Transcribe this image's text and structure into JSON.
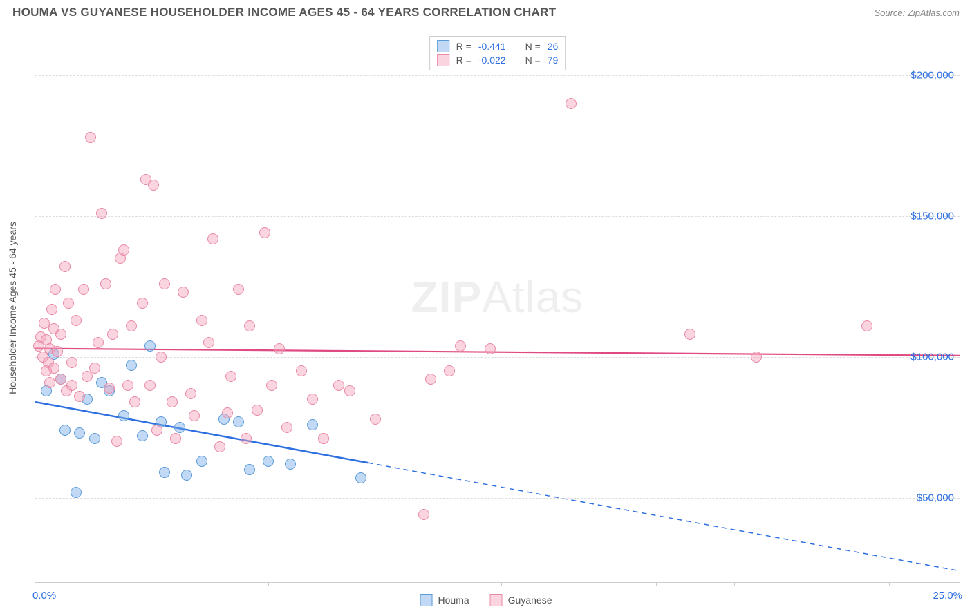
{
  "title": "HOUMA VS GUYANESE HOUSEHOLDER INCOME AGES 45 - 64 YEARS CORRELATION CHART",
  "source": "Source: ZipAtlas.com",
  "watermark_a": "ZIP",
  "watermark_b": "Atlas",
  "chart": {
    "type": "scatter",
    "xlim": [
      0,
      25
    ],
    "ylim": [
      20000,
      215000
    ],
    "x_label_min": "0.0%",
    "x_label_max": "25.0%",
    "yaxis_title": "Householder Income Ages 45 - 64 years",
    "yticks": [
      50000,
      100000,
      150000,
      200000
    ],
    "ytick_labels": [
      "$50,000",
      "$100,000",
      "$150,000",
      "$200,000"
    ],
    "xtick_positions": [
      2.1,
      4.2,
      6.3,
      8.4,
      10.5,
      12.6,
      14.7,
      16.8,
      18.9,
      21.0,
      23.1
    ],
    "grid_color": "#dddddd",
    "axis_color": "#cccccc",
    "background_color": "#ffffff",
    "marker_radius": 8,
    "marker_stroke_width": 1.2,
    "series": [
      {
        "name": "Houma",
        "fill": "rgba(118,170,231,0.45)",
        "stroke": "#5a9bd8",
        "r_label": "R =",
        "r_value": "-0.441",
        "n_label": "N =",
        "n_value": "26",
        "trend": {
          "y_at_xmin": 84000,
          "y_at_xmax": 24000,
          "solid_until_x": 9.0,
          "color": "#2d6fe0",
          "width": 2.5
        },
        "points": [
          [
            0.3,
            88000
          ],
          [
            0.5,
            101000
          ],
          [
            0.7,
            92000
          ],
          [
            0.8,
            74000
          ],
          [
            1.1,
            52000
          ],
          [
            1.2,
            73000
          ],
          [
            1.4,
            85000
          ],
          [
            1.6,
            71000
          ],
          [
            1.8,
            91000
          ],
          [
            2.0,
            88000
          ],
          [
            2.4,
            79000
          ],
          [
            2.6,
            97000
          ],
          [
            2.9,
            72000
          ],
          [
            3.1,
            104000
          ],
          [
            3.4,
            77000
          ],
          [
            3.5,
            59000
          ],
          [
            3.9,
            75000
          ],
          [
            4.1,
            58000
          ],
          [
            4.5,
            63000
          ],
          [
            5.1,
            78000
          ],
          [
            5.5,
            77000
          ],
          [
            5.8,
            60000
          ],
          [
            6.3,
            63000
          ],
          [
            6.9,
            62000
          ],
          [
            7.5,
            76000
          ],
          [
            8.8,
            57000
          ]
        ]
      },
      {
        "name": "Guyanese",
        "fill": "rgba(244,160,185,0.45)",
        "stroke": "#e889a6",
        "r_label": "R =",
        "r_value": "-0.022",
        "n_label": "N =",
        "n_value": "79",
        "trend": {
          "y_at_xmin": 103000,
          "y_at_xmax": 100500,
          "solid_until_x": 25.0,
          "color": "#e04a82",
          "width": 2.2
        },
        "points": [
          [
            0.1,
            104000
          ],
          [
            0.15,
            107000
          ],
          [
            0.2,
            100000
          ],
          [
            0.25,
            112000
          ],
          [
            0.3,
            95000
          ],
          [
            0.3,
            106000
          ],
          [
            0.35,
            98000
          ],
          [
            0.4,
            103000
          ],
          [
            0.4,
            91000
          ],
          [
            0.45,
            117000
          ],
          [
            0.5,
            110000
          ],
          [
            0.5,
            96000
          ],
          [
            0.55,
            124000
          ],
          [
            0.6,
            102000
          ],
          [
            0.7,
            108000
          ],
          [
            0.7,
            92000
          ],
          [
            0.8,
            132000
          ],
          [
            0.85,
            88000
          ],
          [
            0.9,
            119000
          ],
          [
            1.0,
            98000
          ],
          [
            1.0,
            90000
          ],
          [
            1.1,
            113000
          ],
          [
            1.2,
            86000
          ],
          [
            1.3,
            124000
          ],
          [
            1.4,
            93000
          ],
          [
            1.5,
            178000
          ],
          [
            1.6,
            96000
          ],
          [
            1.7,
            105000
          ],
          [
            1.8,
            151000
          ],
          [
            1.9,
            126000
          ],
          [
            2.0,
            89000
          ],
          [
            2.1,
            108000
          ],
          [
            2.2,
            70000
          ],
          [
            2.3,
            135000
          ],
          [
            2.4,
            138000
          ],
          [
            2.5,
            90000
          ],
          [
            2.6,
            111000
          ],
          [
            2.7,
            84000
          ],
          [
            2.9,
            119000
          ],
          [
            3.0,
            163000
          ],
          [
            3.1,
            90000
          ],
          [
            3.2,
            161000
          ],
          [
            3.3,
            74000
          ],
          [
            3.4,
            100000
          ],
          [
            3.5,
            126000
          ],
          [
            3.7,
            84000
          ],
          [
            3.8,
            71000
          ],
          [
            4.0,
            123000
          ],
          [
            4.2,
            87000
          ],
          [
            4.3,
            79000
          ],
          [
            4.5,
            113000
          ],
          [
            4.7,
            105000
          ],
          [
            4.8,
            142000
          ],
          [
            5.0,
            68000
          ],
          [
            5.2,
            80000
          ],
          [
            5.3,
            93000
          ],
          [
            5.5,
            124000
          ],
          [
            5.7,
            71000
          ],
          [
            5.8,
            111000
          ],
          [
            6.0,
            81000
          ],
          [
            6.2,
            144000
          ],
          [
            6.4,
            90000
          ],
          [
            6.6,
            103000
          ],
          [
            6.8,
            75000
          ],
          [
            7.2,
            95000
          ],
          [
            7.5,
            85000
          ],
          [
            7.8,
            71000
          ],
          [
            8.2,
            90000
          ],
          [
            8.5,
            88000
          ],
          [
            9.2,
            78000
          ],
          [
            10.5,
            44000
          ],
          [
            10.7,
            92000
          ],
          [
            11.2,
            95000
          ],
          [
            11.5,
            104000
          ],
          [
            14.5,
            190000
          ],
          [
            17.7,
            108000
          ],
          [
            19.5,
            100000
          ],
          [
            22.5,
            111000
          ],
          [
            12.3,
            103000
          ]
        ]
      }
    ]
  }
}
